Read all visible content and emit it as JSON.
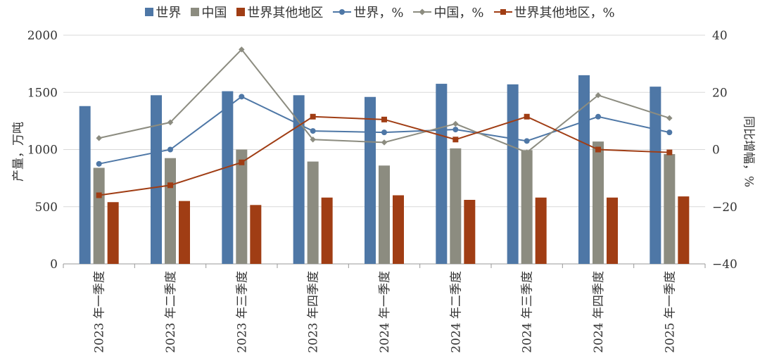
{
  "chart_data": {
    "type": "bar",
    "categories": [
      "2023 年一季度",
      "2023 年二季度",
      "2023 年三季度",
      "2023 年四季度",
      "2024 年一季度",
      "2024 年二季度",
      "2024 年三季度",
      "2024 年四季度",
      "2025 年一季度"
    ],
    "series": [
      {
        "name": "世界",
        "kind": "bar",
        "axis": "left",
        "color": "#4E77A6",
        "values": [
          1380,
          1475,
          1510,
          1475,
          1460,
          1575,
          1570,
          1650,
          1550
        ]
      },
      {
        "name": "中国",
        "kind": "bar",
        "axis": "left",
        "color": "#8C8C80",
        "values": [
          840,
          925,
          1000,
          895,
          860,
          1010,
          995,
          1070,
          960
        ]
      },
      {
        "name": "世界其他地区",
        "kind": "bar",
        "axis": "left",
        "color": "#A03D14",
        "values": [
          540,
          550,
          515,
          580,
          600,
          560,
          580,
          580,
          590
        ]
      },
      {
        "name": "世界，%",
        "kind": "line",
        "marker": "circle",
        "axis": "right",
        "color": "#4E77A6",
        "values": [
          -5,
          0,
          18.5,
          6.5,
          6,
          7,
          3,
          11.5,
          6
        ]
      },
      {
        "name": "中国，%",
        "kind": "line",
        "marker": "diamond",
        "axis": "right",
        "color": "#8C8C80",
        "values": [
          4,
          9.5,
          35,
          3.5,
          2.5,
          9,
          -1,
          19,
          11
        ]
      },
      {
        "name": "世界其他地区，%",
        "kind": "line",
        "marker": "square",
        "axis": "right",
        "color": "#A03D14",
        "values": [
          -16,
          -12.5,
          -4.5,
          11.5,
          10.5,
          3.5,
          11.5,
          0,
          -1
        ]
      }
    ],
    "ylabel": "产量，万吨",
    "y2label": "同比增幅，%",
    "ylim": [
      0,
      2000
    ],
    "y2lim": [
      -40,
      40
    ],
    "yticks": [
      "0",
      "500",
      "1000",
      "1500",
      "2000"
    ],
    "y2ticks": [
      "−40",
      "−20",
      "0",
      "20",
      "40"
    ],
    "grid": true,
    "legend_position": "top"
  }
}
